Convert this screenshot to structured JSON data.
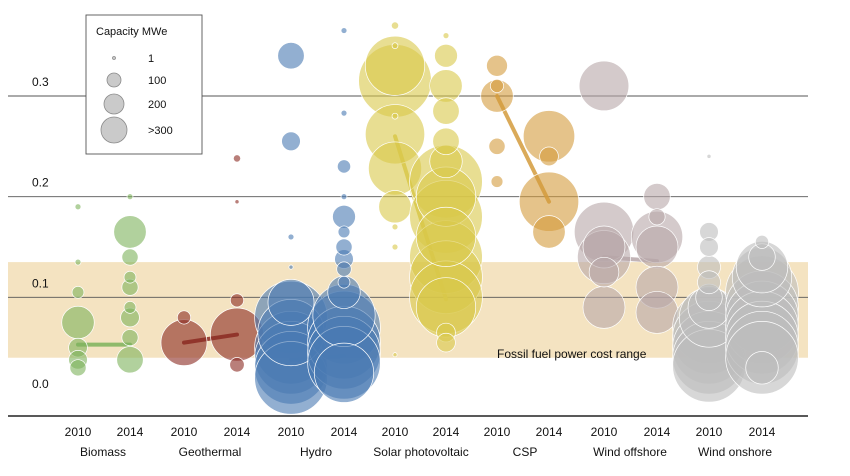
{
  "chart_data": {
    "type": "scatter",
    "title": "",
    "xlabel": "",
    "ylabel": "",
    "ylim": [
      0,
      0.36
    ],
    "y_ticks": [
      {
        "value": 0.0,
        "label": "0.0"
      },
      {
        "value": 0.1,
        "label": "0.1"
      },
      {
        "value": 0.2,
        "label": "0.2"
      },
      {
        "value": 0.3,
        "label": "0.3"
      }
    ],
    "band": {
      "low": 0.04,
      "high": 0.135,
      "label": "Fossil fuel power cost range",
      "color": "#f4e3c1"
    },
    "legend": {
      "title": "Capacity MWe",
      "placement": "top-left",
      "entries": [
        {
          "capacity": 1,
          "label": "1"
        },
        {
          "capacity": 100,
          "label": "100"
        },
        {
          "capacity": 200,
          "label": "200"
        },
        {
          "capacity": 300,
          "label": ">300"
        }
      ]
    },
    "years": [
      "2010",
      "2014"
    ],
    "series": [
      {
        "name": "Biomass",
        "color": "#7db35c",
        "avg": [
          0.053,
          0.053
        ],
        "points": {
          "2010": [
            [
              0.19,
              2
            ],
            [
              0.135,
              2
            ],
            [
              0.105,
              8
            ],
            [
              0.075,
              60
            ],
            [
              0.05,
              20
            ],
            [
              0.038,
              20
            ],
            [
              0.03,
              15
            ]
          ],
          "2014": [
            [
              0.2,
              2
            ],
            [
              0.165,
              60
            ],
            [
              0.14,
              15
            ],
            [
              0.12,
              8
            ],
            [
              0.11,
              15
            ],
            [
              0.09,
              8
            ],
            [
              0.08,
              20
            ],
            [
              0.06,
              15
            ],
            [
              0.038,
              40
            ]
          ]
        }
      },
      {
        "name": "Geothermal",
        "color": "#8b2a22",
        "avg": [
          0.055,
          0.063
        ],
        "points": {
          "2010": [
            [
              0.08,
              10
            ],
            [
              0.055,
              120
            ]
          ],
          "2014": [
            [
              0.238,
              3
            ],
            [
              0.195,
              1
            ],
            [
              0.097,
              10
            ],
            [
              0.063,
              160
            ],
            [
              0.033,
              12
            ]
          ]
        }
      },
      {
        "name": "Hydro",
        "color": "#4a7ab2",
        "avg": [
          0.038,
          0.042
        ],
        "points": {
          "2010": [
            [
              0.34,
              40
            ],
            [
              0.255,
              20
            ],
            [
              0.16,
              2
            ],
            [
              0.13,
              1
            ],
            [
              0.095,
              120
            ],
            [
              0.08,
              300
            ],
            [
              0.065,
              250
            ],
            [
              0.05,
              300
            ],
            [
              0.04,
              300
            ],
            [
              0.03,
              300
            ],
            [
              0.02,
              300
            ]
          ],
          "2014": [
            [
              0.365,
              2
            ],
            [
              0.283,
              2
            ],
            [
              0.23,
              10
            ],
            [
              0.2,
              2
            ],
            [
              0.18,
              30
            ],
            [
              0.165,
              8
            ],
            [
              0.15,
              15
            ],
            [
              0.138,
              20
            ],
            [
              0.128,
              12
            ],
            [
              0.115,
              8
            ],
            [
              0.105,
              60
            ],
            [
              0.082,
              220
            ],
            [
              0.07,
              300
            ],
            [
              0.055,
              300
            ],
            [
              0.045,
              300
            ],
            [
              0.035,
              300
            ],
            [
              0.025,
              200
            ]
          ]
        }
      },
      {
        "name": "Solar photovoltaic",
        "color": "#d9c84a",
        "avg": [
          0.26,
          0.098
        ],
        "points": {
          "2010": [
            [
              0.37,
              3
            ],
            [
              0.35,
              2
            ],
            [
              0.33,
              200
            ],
            [
              0.315,
              300
            ],
            [
              0.28,
              2
            ],
            [
              0.262,
              200
            ],
            [
              0.228,
              160
            ],
            [
              0.19,
              60
            ],
            [
              0.17,
              2
            ],
            [
              0.15,
              2
            ],
            [
              0.043,
              1
            ]
          ],
          "2014": [
            [
              0.36,
              2
            ],
            [
              0.34,
              30
            ],
            [
              0.31,
              60
            ],
            [
              0.285,
              40
            ],
            [
              0.255,
              40
            ],
            [
              0.235,
              60
            ],
            [
              0.215,
              300
            ],
            [
              0.2,
              200
            ],
            [
              0.18,
              300
            ],
            [
              0.16,
              200
            ],
            [
              0.14,
              300
            ],
            [
              0.12,
              300
            ],
            [
              0.1,
              300
            ],
            [
              0.09,
              200
            ],
            [
              0.065,
              20
            ],
            [
              0.055,
              20
            ]
          ]
        }
      },
      {
        "name": "CSP",
        "color": "#d49b3c",
        "avg": [
          0.3,
          0.195
        ],
        "points": {
          "2010": [
            [
              0.33,
              25
            ],
            [
              0.31,
              10
            ],
            [
              0.3,
              60
            ],
            [
              0.25,
              15
            ],
            [
              0.215,
              8
            ]
          ],
          "2014": [
            [
              0.26,
              150
            ],
            [
              0.24,
              20
            ],
            [
              0.195,
              200
            ],
            [
              0.165,
              60
            ]
          ]
        }
      },
      {
        "name": "Wind offshore",
        "color": "#b7a7a9",
        "avg": [
          0.14,
          0.136
        ],
        "points": {
          "2010": [
            [
              0.31,
              140
            ],
            [
              0.165,
              200
            ],
            [
              0.15,
              100
            ],
            [
              0.14,
              160
            ],
            [
              0.125,
              50
            ],
            [
              0.09,
              100
            ]
          ],
          "2014": [
            [
              0.2,
              40
            ],
            [
              0.18,
              15
            ],
            [
              0.16,
              150
            ],
            [
              0.15,
              100
            ],
            [
              0.11,
              100
            ],
            [
              0.085,
              100
            ]
          ]
        }
      },
      {
        "name": "Wind onshore",
        "color": "#bcbcbc",
        "avg": [
          0.068,
          0.06
        ],
        "points": {
          "2010": [
            [
              0.24,
              1
            ],
            [
              0.165,
              20
            ],
            [
              0.15,
              20
            ],
            [
              0.13,
              30
            ],
            [
              0.115,
              30
            ],
            [
              0.1,
              40
            ],
            [
              0.09,
              100
            ],
            [
              0.08,
              200
            ],
            [
              0.07,
              300
            ],
            [
              0.06,
              300
            ],
            [
              0.05,
              300
            ],
            [
              0.04,
              300
            ],
            [
              0.032,
              300
            ]
          ],
          "2014": [
            [
              0.155,
              10
            ],
            [
              0.14,
              40
            ],
            [
              0.13,
              150
            ],
            [
              0.12,
              200
            ],
            [
              0.105,
              300
            ],
            [
              0.09,
              300
            ],
            [
              0.08,
              300
            ],
            [
              0.07,
              300
            ],
            [
              0.06,
              300
            ],
            [
              0.05,
              300
            ],
            [
              0.04,
              300
            ],
            [
              0.03,
              60
            ]
          ]
        }
      }
    ]
  }
}
